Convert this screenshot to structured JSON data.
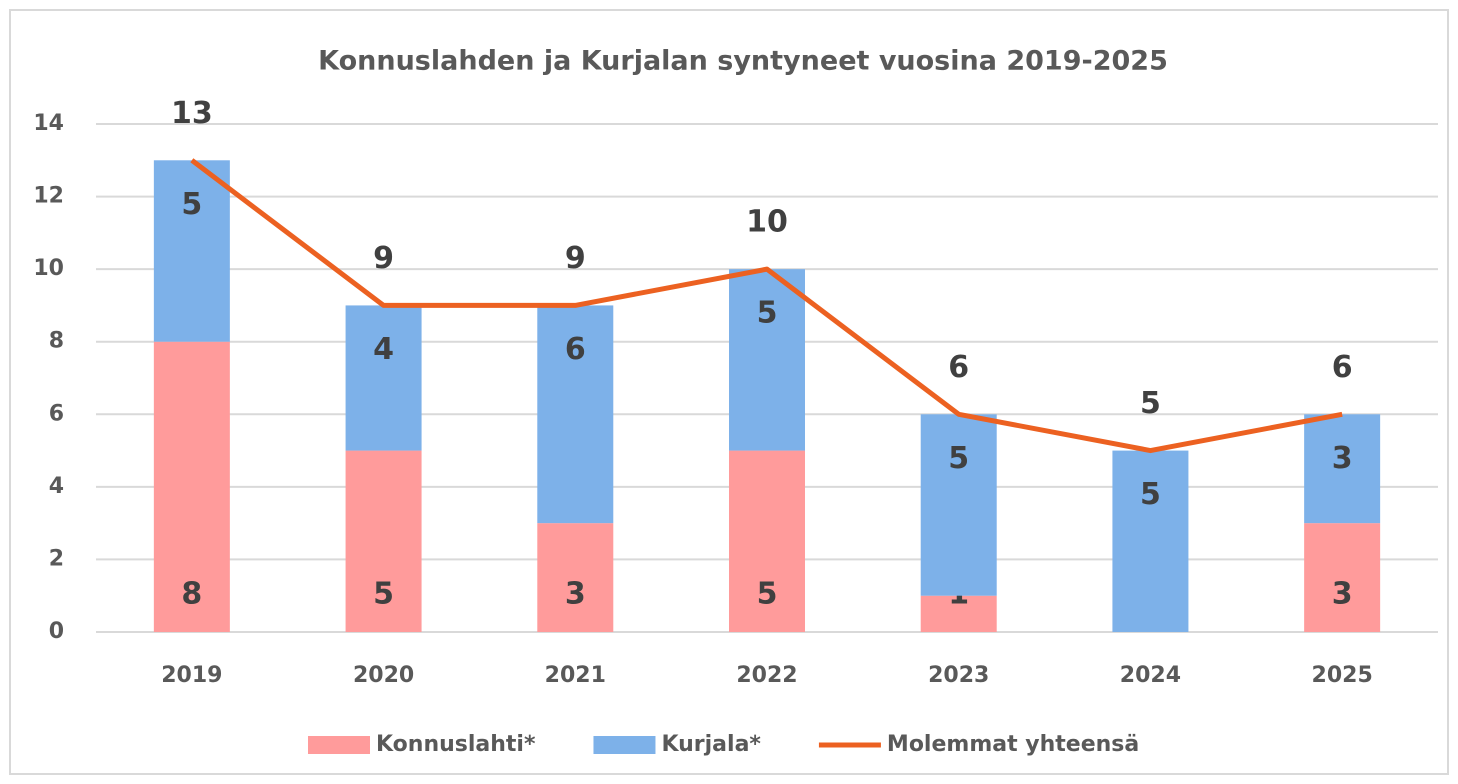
{
  "chart_data": {
    "type": "bar",
    "stacked": true,
    "title": "Konnuslahden ja Kurjalan syntyneet vuosina 2019-2025",
    "categories": [
      "2019",
      "2020",
      "2021",
      "2022",
      "2023",
      "2024",
      "2025"
    ],
    "series": [
      {
        "name": "Konnuslahti*",
        "type": "bar",
        "color": "#ff9b9b",
        "values": [
          8,
          5,
          3,
          5,
          1,
          0,
          3
        ]
      },
      {
        "name": "Kurjala*",
        "type": "bar",
        "color": "#7db1e9",
        "values": [
          5,
          4,
          6,
          5,
          5,
          5,
          3
        ]
      },
      {
        "name": "Molemmat yhteensä",
        "type": "line",
        "color": "#ec6121",
        "values": [
          13,
          9,
          9,
          10,
          6,
          5,
          6
        ]
      }
    ],
    "ylim": [
      0,
      14
    ],
    "yticks": [
      0,
      2,
      4,
      6,
      8,
      10,
      12,
      14
    ],
    "grid": true,
    "legend": "bottom"
  }
}
